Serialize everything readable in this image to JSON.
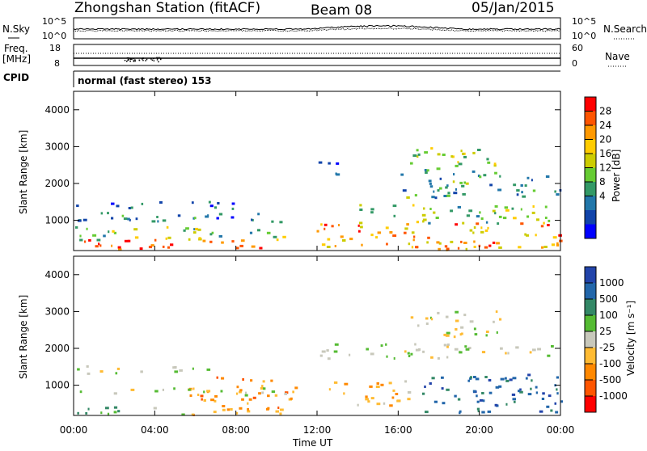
{
  "header": {
    "title": "Zhongshan Station (fitACF)",
    "beam": "Beam 08",
    "date": "05/Jan/2015"
  },
  "noise_panel": {
    "left_label": "N.Sky",
    "right_label": "N.Search",
    "left_ticks": [
      "10^5",
      "10^0"
    ],
    "right_ticks": [
      "10^5",
      "10^0"
    ]
  },
  "freq_panel": {
    "left_label_line1": "Freq.",
    "left_label_line2": "[MHz]",
    "right_label": "Nave",
    "left_ticks": [
      "18",
      "8"
    ],
    "right_ticks": [
      "60",
      "0"
    ]
  },
  "cpid_panel": {
    "label": "CPID",
    "text": "normal (fast stereo) 153"
  },
  "power_panel": {
    "ylabel": "Slant Range [km]",
    "yticks": [
      "4000",
      "3000",
      "2000",
      "1000"
    ],
    "colorbar_label": "Power [dB]",
    "colorbar_ticks": [
      "28",
      "24",
      "20",
      "16",
      "12",
      "8",
      "4"
    ],
    "colorbar_colors": [
      "#ff0000",
      "#ff5500",
      "#ff9900",
      "#ffcc00",
      "#cccc00",
      "#66cc33",
      "#339966",
      "#2277aa",
      "#1144aa",
      "#0000ff"
    ]
  },
  "velocity_panel": {
    "ylabel": "Slant Range [km]",
    "yticks": [
      "4000",
      "3000",
      "2000",
      "1000"
    ],
    "colorbar_label": "Velocity [m s⁻¹]",
    "colorbar_ticks": [
      "1000",
      "500",
      "100",
      "25",
      "-25",
      "-100",
      "-500",
      "-1000"
    ],
    "colorbar_colors": [
      "#2244aa",
      "#2266aa",
      "#338866",
      "#55bb33",
      "#c8c8bb",
      "#ffbb33",
      "#ff8800",
      "#ff5500",
      "#ff0000"
    ]
  },
  "x_axis": {
    "label": "Time UT",
    "ticks": [
      "00:00",
      "04:00",
      "08:00",
      "12:00",
      "16:00",
      "20:00",
      "00:00"
    ]
  },
  "chart_data": [
    {
      "type": "heatmap",
      "title": "Zhongshan Station (fitACF) Beam 08 05/Jan/2015",
      "variable": "Power",
      "xlabel": "Time UT",
      "ylabel": "Slant Range [km]",
      "xlim": [
        "00:00",
        "24:00"
      ],
      "ylim": [
        180,
        4500
      ],
      "colorbar_range_dB": [
        0,
        30
      ],
      "bands": [
        {
          "t_start": 0.0,
          "t_end": 10.5,
          "r_start": 180,
          "r_end": 450,
          "level": 26
        },
        {
          "t_start": 0.0,
          "t_end": 10.5,
          "r_start": 450,
          "r_end": 800,
          "level": 14
        },
        {
          "t_start": 0.0,
          "t_end": 8.0,
          "r_start": 1300,
          "r_end": 1500,
          "level": 6
        },
        {
          "t_start": 0.0,
          "t_end": 10.5,
          "r_start": 900,
          "r_end": 1200,
          "level": 7
        },
        {
          "t_start": 11.8,
          "t_end": 24.0,
          "r_start": 180,
          "r_end": 900,
          "level": 22
        },
        {
          "t_start": 14.0,
          "t_end": 24.0,
          "r_start": 900,
          "r_end": 1400,
          "level": 14
        },
        {
          "t_start": 16.0,
          "t_end": 24.0,
          "r_start": 1600,
          "r_end": 2300,
          "level": 10
        },
        {
          "t_start": 12.0,
          "t_end": 13.0,
          "r_start": 2200,
          "r_end": 2700,
          "level": 6
        },
        {
          "t_start": 16.5,
          "t_end": 21.0,
          "r_start": 2300,
          "r_end": 3000,
          "level": 14
        }
      ]
    },
    {
      "type": "heatmap",
      "title": "Zhongshan Station (fitACF) Beam 08 05/Jan/2015",
      "variable": "Velocity",
      "xlabel": "Time UT",
      "ylabel": "Slant Range [km]",
      "xlim": [
        "00:00",
        "24:00"
      ],
      "ylim": [
        180,
        4500
      ],
      "colorbar_range_ms": [
        -1000,
        1000
      ],
      "bands": [
        {
          "t_start": 0.0,
          "t_end": 5.5,
          "r_start": 180,
          "r_end": 400,
          "level": 250
        },
        {
          "t_start": 5.5,
          "t_end": 11.0,
          "r_start": 180,
          "r_end": 1200,
          "level": -400
        },
        {
          "t_start": 0.0,
          "t_end": 10.5,
          "r_start": 700,
          "r_end": 900,
          "level": 0
        },
        {
          "t_start": 0.0,
          "t_end": 7.0,
          "r_start": 1300,
          "r_end": 1500,
          "level": 0
        },
        {
          "t_start": 12.0,
          "t_end": 24.0,
          "r_start": 1700,
          "r_end": 2100,
          "level": 0
        },
        {
          "t_start": 12.5,
          "t_end": 16.5,
          "r_start": 400,
          "r_end": 1100,
          "level": -300
        },
        {
          "t_start": 17.0,
          "t_end": 24.0,
          "r_start": 200,
          "r_end": 1300,
          "level": 700
        },
        {
          "t_start": 16.5,
          "t_end": 21.0,
          "r_start": 2300,
          "r_end": 3000,
          "level": -80
        }
      ]
    }
  ]
}
